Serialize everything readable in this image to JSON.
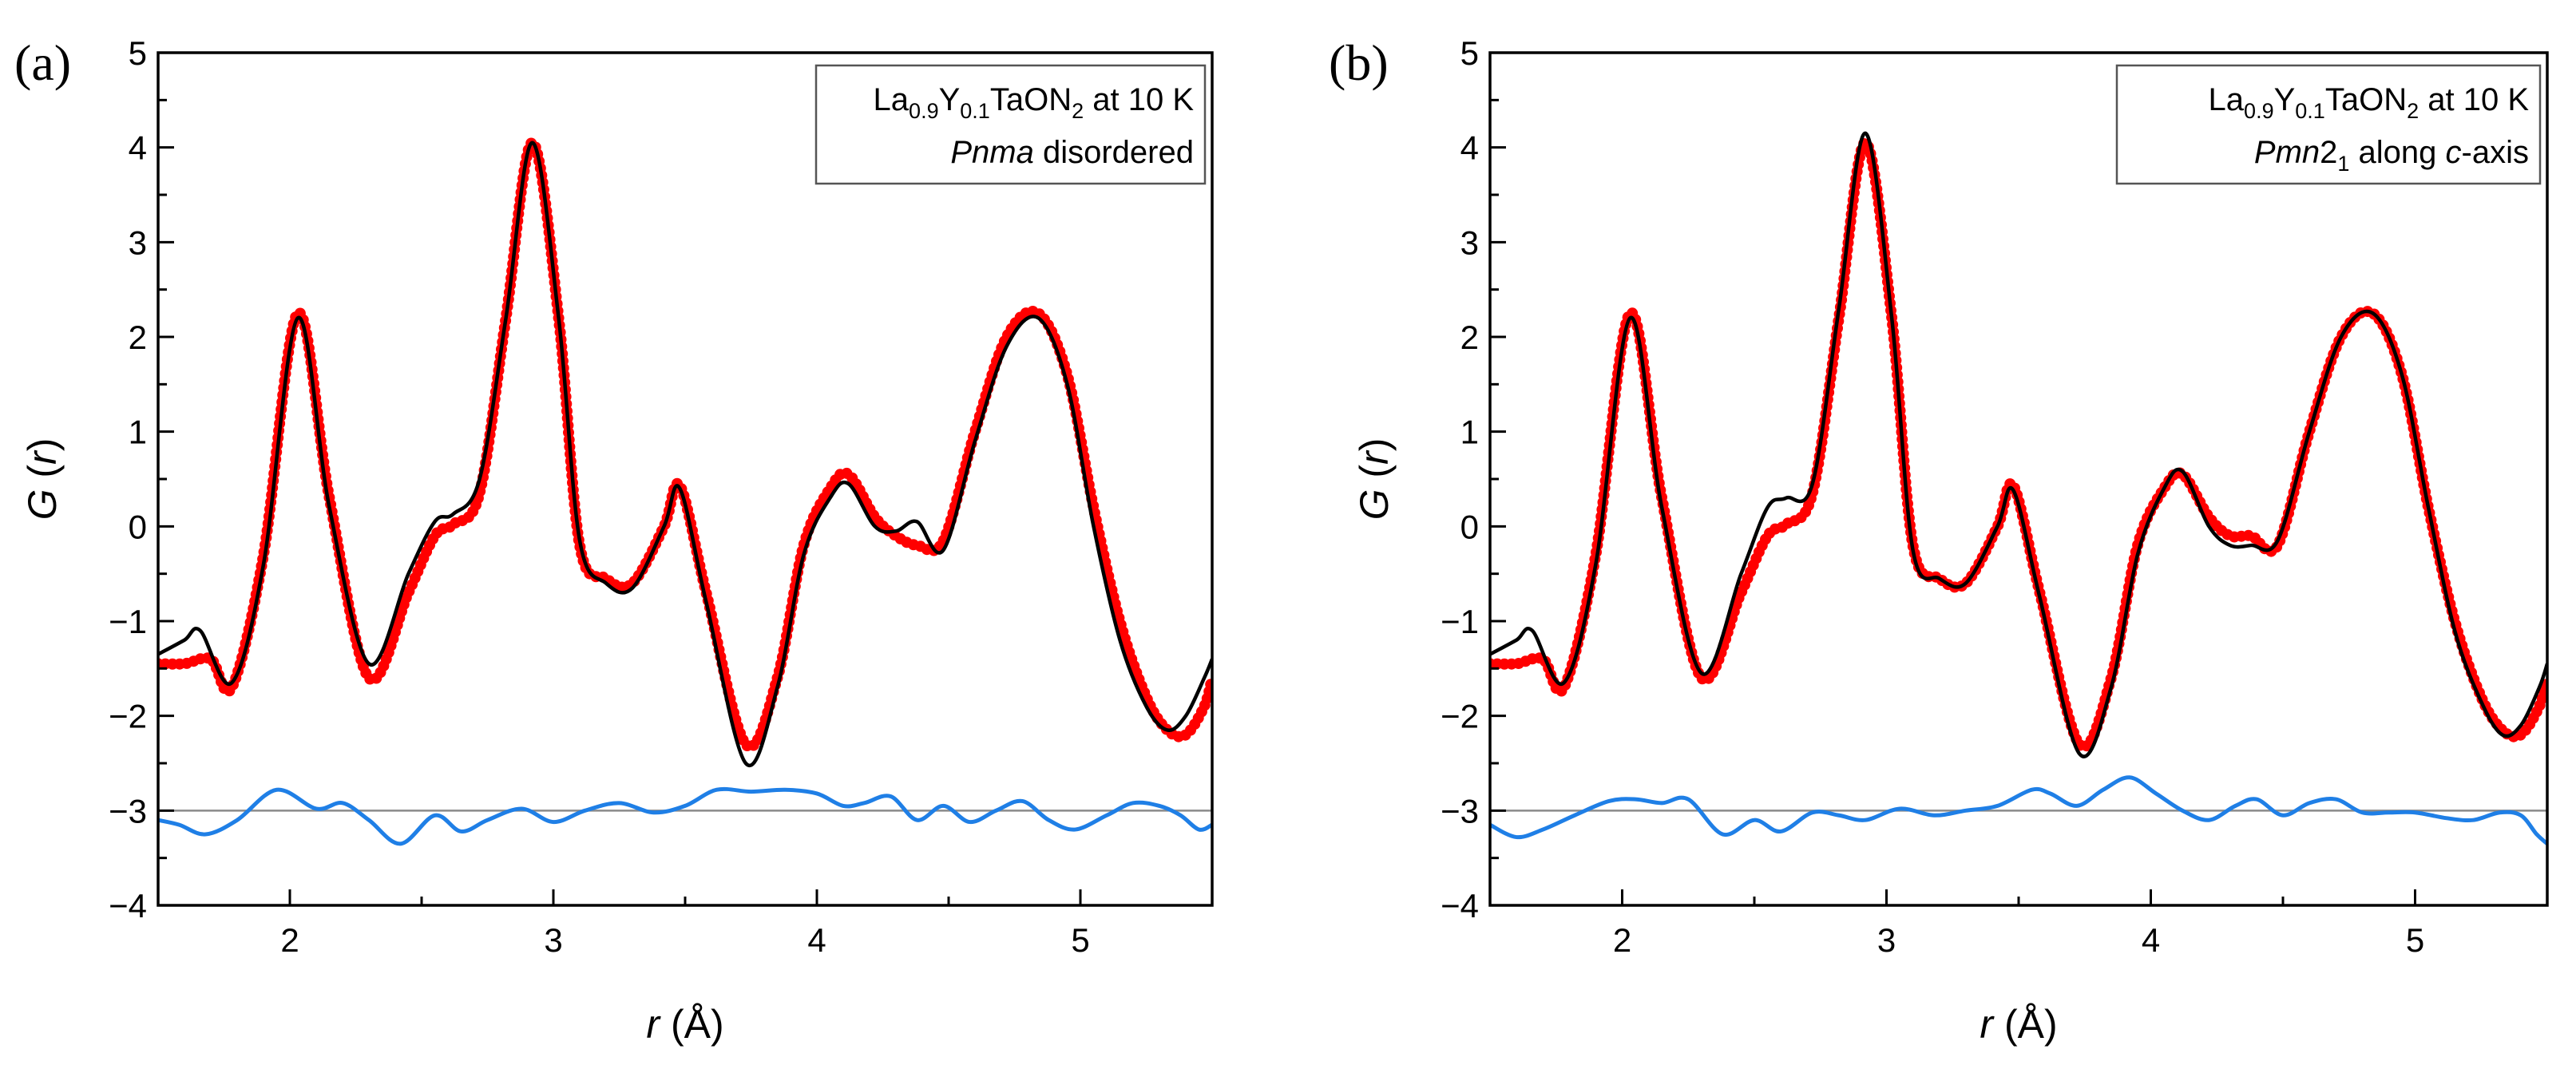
{
  "chart_data": [
    {
      "type": "line",
      "panel_label": "(a)",
      "legend": {
        "compound_parts": [
          "La",
          "0.9",
          "Y",
          "0.1",
          "TaON",
          "2"
        ],
        "condition": "at 10 K",
        "model_italic": "Pnma",
        "model_rest": "disordered",
        "placement": "top-right"
      },
      "xlabel_italic": "r",
      "xlabel_rest": "(Å)",
      "ylabel_italic": "G",
      "ylabel_rest": "(r)",
      "xlim": [
        1.5,
        5.5
      ],
      "ylim": [
        -4,
        5
      ],
      "xticks": [
        2,
        3,
        4,
        5
      ],
      "xtick_labels": [
        "2",
        "3",
        "4",
        "5"
      ],
      "yticks": [
        -4,
        -3,
        -2,
        -1,
        0,
        1,
        2,
        3,
        4,
        5
      ],
      "ytick_labels": [
        "−4",
        "−3",
        "−2",
        "−1",
        "0",
        "1",
        "2",
        "3",
        "4",
        "5"
      ],
      "difference_offset": -3,
      "series": [
        {
          "name": "observed",
          "style": "red-dots",
          "color": "#ff0000",
          "x": [
            1.5,
            1.6,
            1.7,
            1.78,
            1.9,
            2.03,
            2.15,
            2.3,
            2.45,
            2.55,
            2.62,
            2.72,
            2.82,
            2.92,
            3.02,
            3.1,
            3.2,
            3.3,
            3.42,
            3.48,
            3.58,
            3.73,
            3.85,
            3.95,
            4.05,
            4.12,
            4.22,
            4.3,
            4.38,
            4.48,
            4.6,
            4.72,
            4.84,
            4.95,
            5.05,
            5.15,
            5.25,
            5.33,
            5.4,
            5.47,
            5.5
          ],
          "y": [
            -1.45,
            -1.45,
            -1.4,
            -1.7,
            -0.3,
            2.25,
            0.3,
            -1.6,
            -0.7,
            -0.1,
            0.02,
            0.35,
            2.2,
            4.05,
            2.2,
            -0.2,
            -0.55,
            -0.6,
            0.0,
            0.43,
            -0.7,
            -2.3,
            -1.6,
            -0.2,
            0.4,
            0.55,
            0.1,
            -0.1,
            -0.2,
            -0.15,
            1.0,
            2.0,
            2.25,
            1.6,
            0.2,
            -1.0,
            -1.8,
            -2.15,
            -2.2,
            -1.9,
            -1.6
          ]
        },
        {
          "name": "calculated",
          "style": "black-line",
          "color": "#000000",
          "x": [
            1.5,
            1.6,
            1.66,
            1.78,
            1.9,
            2.03,
            2.15,
            2.3,
            2.45,
            2.55,
            2.62,
            2.72,
            2.82,
            2.92,
            3.02,
            3.1,
            3.2,
            3.3,
            3.42,
            3.48,
            3.58,
            3.73,
            3.85,
            3.95,
            4.05,
            4.12,
            4.22,
            4.3,
            4.38,
            4.48,
            4.6,
            4.72,
            4.84,
            4.95,
            5.05,
            5.15,
            5.25,
            5.33,
            5.4,
            5.47,
            5.5
          ],
          "y": [
            -1.35,
            -1.2,
            -1.1,
            -1.65,
            -0.4,
            2.2,
            0.2,
            -1.45,
            -0.5,
            0.05,
            0.13,
            0.5,
            2.2,
            4.05,
            2.2,
            -0.15,
            -0.6,
            -0.65,
            0.0,
            0.4,
            -0.8,
            -2.5,
            -1.7,
            -0.3,
            0.3,
            0.45,
            0.0,
            -0.05,
            0.05,
            -0.25,
            0.9,
            1.9,
            2.2,
            1.5,
            0.0,
            -1.2,
            -1.9,
            -2.15,
            -2.0,
            -1.6,
            -1.4
          ]
        },
        {
          "name": "difference",
          "style": "blue-line",
          "color": "#1f7fe6",
          "x": [
            1.5,
            1.58,
            1.68,
            1.8,
            1.95,
            2.1,
            2.2,
            2.3,
            2.42,
            2.55,
            2.65,
            2.75,
            2.88,
            3.0,
            3.12,
            3.25,
            3.38,
            3.5,
            3.62,
            3.75,
            3.88,
            4.0,
            4.1,
            4.18,
            4.28,
            4.38,
            4.48,
            4.58,
            4.68,
            4.78,
            4.88,
            4.98,
            5.1,
            5.2,
            5.3,
            5.38,
            5.45,
            5.5
          ],
          "y": [
            -3.1,
            -3.15,
            -3.25,
            -3.1,
            -2.78,
            -2.98,
            -2.92,
            -3.1,
            -3.35,
            -3.05,
            -3.22,
            -3.1,
            -2.98,
            -3.12,
            -3.0,
            -2.92,
            -3.02,
            -2.95,
            -2.78,
            -2.8,
            -2.78,
            -2.82,
            -2.95,
            -2.92,
            -2.85,
            -3.1,
            -2.95,
            -3.12,
            -3.0,
            -2.9,
            -3.1,
            -3.2,
            -3.05,
            -2.92,
            -2.95,
            -3.05,
            -3.2,
            -3.15
          ]
        }
      ]
    },
    {
      "type": "line",
      "panel_label": "(b)",
      "legend": {
        "compound_parts": [
          "La",
          "0.9",
          "Y",
          "0.1",
          "TaON",
          "2"
        ],
        "condition": "at 10 K",
        "model_italic": "Pmn",
        "model_rest_main": "2",
        "model_rest_sub": "1",
        "model_along": "along",
        "model_axis_italic": "c",
        "model_axis_rest": "-axis",
        "placement": "top-right"
      },
      "xlabel_italic": "r",
      "xlabel_rest": "(Å)",
      "ylabel_italic": "G",
      "ylabel_rest": "(r)",
      "xlim": [
        1.5,
        5.5
      ],
      "ylim": [
        -4,
        5
      ],
      "xticks": [
        2,
        3,
        4,
        5
      ],
      "xtick_labels": [
        "2",
        "3",
        "4",
        "5"
      ],
      "yticks": [
        -4,
        -3,
        -2,
        -1,
        0,
        1,
        2,
        3,
        4,
        5
      ],
      "ytick_labels": [
        "−4",
        "−3",
        "−2",
        "−1",
        "0",
        "1",
        "2",
        "3",
        "4",
        "5"
      ],
      "difference_offset": -3,
      "series": [
        {
          "name": "observed",
          "style": "red-dots",
          "color": "#ff0000",
          "x": [
            1.5,
            1.6,
            1.7,
            1.78,
            1.9,
            2.03,
            2.15,
            2.3,
            2.45,
            2.55,
            2.62,
            2.72,
            2.82,
            2.92,
            3.02,
            3.1,
            3.2,
            3.3,
            3.42,
            3.48,
            3.58,
            3.73,
            3.85,
            3.95,
            4.05,
            4.12,
            4.22,
            4.3,
            4.38,
            4.48,
            4.6,
            4.72,
            4.84,
            4.95,
            5.05,
            5.15,
            5.25,
            5.33,
            5.4,
            5.47,
            5.5
          ],
          "y": [
            -1.45,
            -1.45,
            -1.4,
            -1.7,
            -0.3,
            2.25,
            0.3,
            -1.6,
            -0.7,
            -0.1,
            0.02,
            0.35,
            2.2,
            4.05,
            2.2,
            -0.2,
            -0.55,
            -0.6,
            0.0,
            0.43,
            -0.7,
            -2.3,
            -1.6,
            -0.2,
            0.4,
            0.55,
            0.1,
            -0.1,
            -0.1,
            -0.2,
            1.0,
            2.0,
            2.25,
            1.6,
            0.2,
            -1.0,
            -1.8,
            -2.15,
            -2.2,
            -1.9,
            -1.6
          ]
        },
        {
          "name": "calculated",
          "style": "black-line",
          "color": "#000000",
          "x": [
            1.5,
            1.6,
            1.66,
            1.78,
            1.9,
            2.03,
            2.15,
            2.3,
            2.45,
            2.55,
            2.62,
            2.72,
            2.82,
            2.92,
            3.02,
            3.1,
            3.2,
            3.3,
            3.42,
            3.48,
            3.58,
            3.73,
            3.85,
            3.95,
            4.05,
            4.12,
            4.22,
            4.3,
            4.38,
            4.48,
            4.6,
            4.72,
            4.84,
            4.95,
            5.05,
            5.15,
            5.25,
            5.33,
            5.4,
            5.47,
            5.5
          ],
          "y": [
            -1.35,
            -1.2,
            -1.1,
            -1.65,
            -0.4,
            2.2,
            0.2,
            -1.55,
            -0.5,
            0.2,
            0.3,
            0.45,
            2.3,
            4.15,
            2.2,
            -0.25,
            -0.55,
            -0.6,
            0.0,
            0.38,
            -0.75,
            -2.4,
            -1.7,
            -0.3,
            0.4,
            0.58,
            0.0,
            -0.2,
            -0.2,
            -0.15,
            1.0,
            2.0,
            2.25,
            1.6,
            0.2,
            -1.1,
            -1.85,
            -2.2,
            -2.1,
            -1.7,
            -1.45
          ]
        },
        {
          "name": "difference",
          "style": "blue-line",
          "color": "#1f7fe6",
          "x": [
            1.5,
            1.6,
            1.7,
            1.82,
            1.95,
            2.05,
            2.15,
            2.25,
            2.38,
            2.5,
            2.6,
            2.72,
            2.82,
            2.92,
            3.05,
            3.18,
            3.3,
            3.42,
            3.55,
            3.62,
            3.72,
            3.82,
            3.92,
            4.02,
            4.12,
            4.22,
            4.32,
            4.4,
            4.5,
            4.6,
            4.7,
            4.8,
            4.9,
            5.0,
            5.12,
            5.22,
            5.32,
            5.4,
            5.46,
            5.5
          ],
          "y": [
            -3.15,
            -3.28,
            -3.2,
            -3.05,
            -2.9,
            -2.88,
            -2.92,
            -2.88,
            -3.25,
            -3.1,
            -3.22,
            -3.02,
            -3.05,
            -3.1,
            -2.98,
            -3.05,
            -3.0,
            -2.95,
            -2.78,
            -2.82,
            -2.95,
            -2.78,
            -2.65,
            -2.82,
            -3.0,
            -3.1,
            -2.95,
            -2.88,
            -3.05,
            -2.92,
            -2.88,
            -3.02,
            -3.02,
            -3.02,
            -3.08,
            -3.1,
            -3.02,
            -3.05,
            -3.25,
            -3.35
          ]
        }
      ]
    }
  ]
}
